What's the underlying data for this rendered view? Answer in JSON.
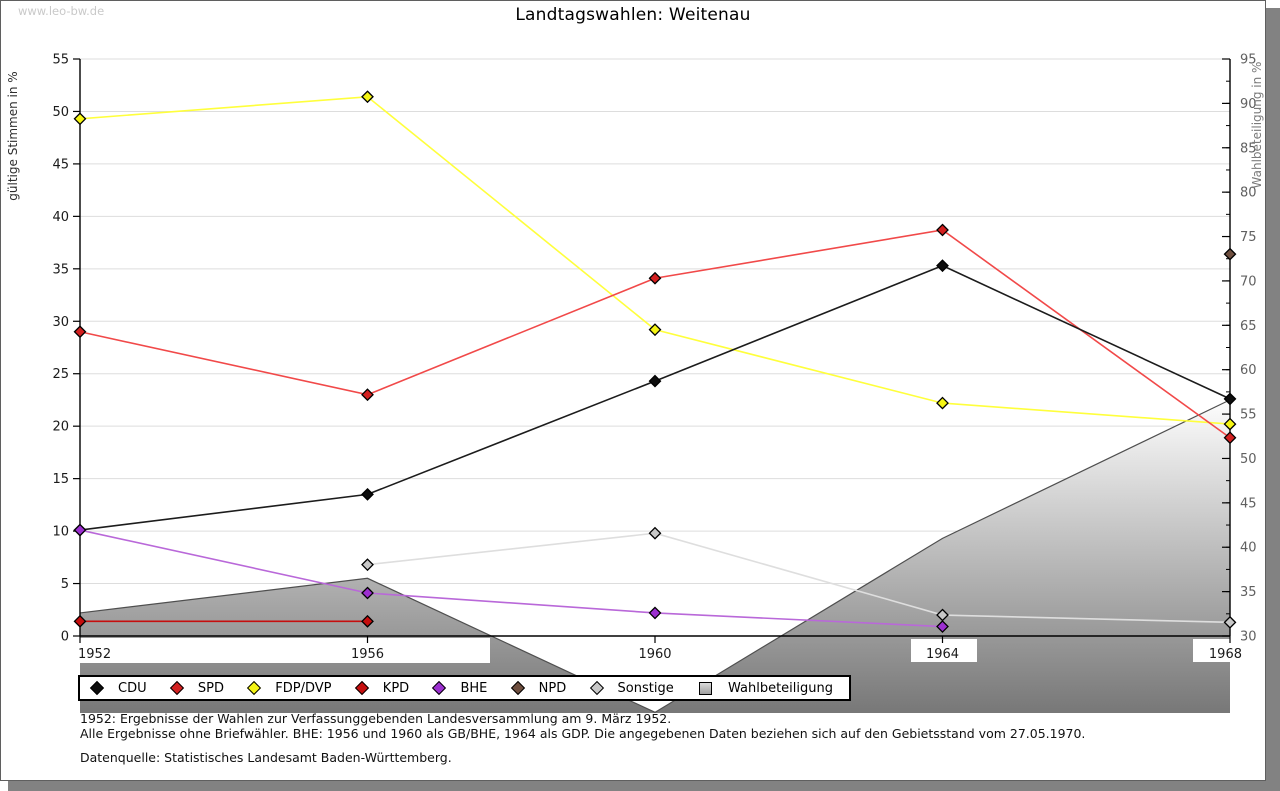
{
  "watermark": "www.leo-bw.de",
  "title": "Landtagswahlen: Weitenau",
  "chart_data": {
    "type": "line",
    "title": "Landtagswahlen: Weitenau",
    "x": [
      1952,
      1956,
      1960,
      1964,
      1968
    ],
    "y_left": {
      "label": "gültige Stimmen in %",
      "min": 0,
      "max": 55,
      "tick_step": 5
    },
    "y_right": {
      "label": "Wahlbeteiligung in %",
      "min": 30,
      "max": 95,
      "tick_step": 5,
      "minor_step": 2.5
    },
    "grid": "horizontal",
    "legend_position": "bottom",
    "series": [
      {
        "name": "CDU",
        "axis": "left",
        "style": "line",
        "color": "#1c1c1c",
        "marker_color": "#0d0d0d",
        "values": [
          10.1,
          13.5,
          24.3,
          35.3,
          22.6
        ]
      },
      {
        "name": "SPD",
        "axis": "left",
        "style": "line",
        "color": "#f14949",
        "marker_color": "#d32020",
        "values": [
          29.0,
          23.0,
          34.1,
          38.7,
          18.9
        ]
      },
      {
        "name": "FDP/DVP",
        "axis": "left",
        "style": "line",
        "color": "#ffff3c",
        "marker_color": "#f5f513",
        "values": [
          49.3,
          51.4,
          29.2,
          22.2,
          20.2
        ]
      },
      {
        "name": "KPD",
        "axis": "left",
        "style": "line",
        "color": "#c60e0e",
        "marker_color": "#c60e0e",
        "values": [
          1.4,
          1.4,
          null,
          null,
          null
        ]
      },
      {
        "name": "BHE",
        "axis": "left",
        "style": "line",
        "color": "#b968d9",
        "marker_color": "#9c2fd0",
        "values": [
          10.1,
          4.1,
          2.2,
          0.9,
          null
        ]
      },
      {
        "name": "NPD",
        "axis": "left",
        "style": "line",
        "color": "#6e4e3e",
        "marker_color": "#6e4e3e",
        "values": [
          null,
          null,
          null,
          null,
          36.4
        ]
      },
      {
        "name": "Sonstige",
        "axis": "left",
        "style": "line",
        "color": "#dedede",
        "marker_color": "#c8c8c8",
        "values": [
          null,
          6.8,
          9.8,
          2.0,
          1.3
        ]
      },
      {
        "name": "Wahlbeteiligung",
        "axis": "right",
        "style": "area",
        "color": "#4f4f4f",
        "fill_top": "#ffffff",
        "fill_bottom": "#777777",
        "values": [
          32.6,
          36.5,
          21.4,
          41.0,
          56.6
        ]
      }
    ]
  },
  "footnotes": {
    "line1": "1952: Ergebnisse der Wahlen zur Verfassunggebenden Landesversammlung am 9. März 1952.",
    "line2": "Alle Ergebnisse ohne Briefwähler. BHE: 1956 und 1960 als GB/BHE, 1964 als GDP. Die angegebenen Daten beziehen sich auf den Gebietsstand vom 27.05.1970.",
    "source": "Datenquelle: Statistisches Landesamt Baden-Württemberg."
  }
}
